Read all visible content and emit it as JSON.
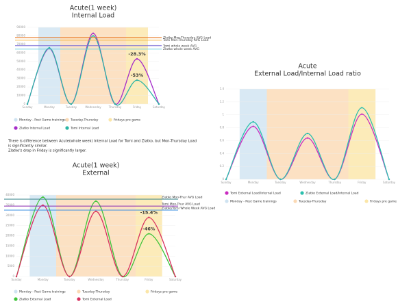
{
  "chart_data": [
    {
      "type": "line",
      "title": [
        "Acute(1 week)",
        "Internal Load"
      ],
      "categories": [
        "Sunday",
        "Monday",
        "Tuesday",
        "Wednesday",
        "Thursday",
        "Friday",
        "Saturday"
      ],
      "ylim": [
        0,
        90000
      ],
      "yticks": [
        0,
        10000,
        20000,
        30000,
        40000,
        50000,
        60000,
        70000,
        80000,
        90000
      ],
      "bands": [
        {
          "name": "Monday - Post Game trainings",
          "color": "#cfe3f1",
          "categories": [
            "Monday"
          ]
        },
        {
          "name": "Tuesday-Thursday",
          "color": "#fbd9b4",
          "categories": [
            "Tuesday",
            "Wednesday",
            "Thursday"
          ]
        },
        {
          "name": "Fridays pre game",
          "color": "#fbe6a8",
          "categories": [
            "Friday"
          ]
        }
      ],
      "series": [
        {
          "name": "Zlatko Internal Load",
          "color": "#a52bc9",
          "values": [
            0,
            65000,
            0,
            83000,
            0,
            53000,
            0
          ]
        },
        {
          "name": "Tomi Internal Load",
          "color": "#2bb5a5",
          "values": [
            0,
            66000,
            0,
            80000,
            0,
            28000,
            0
          ]
        }
      ],
      "reference_lines": [
        {
          "name": "Zlatko Mon-Thursday AVG Load",
          "color": "#e8731a",
          "value": 78000
        },
        {
          "name": "Tomi Mon-Thursday AVG Load",
          "color": "#f2b23a",
          "value": 75000
        },
        {
          "name": "Tomi whole week AVG",
          "color": "#7b6fd6",
          "value": 68500
        },
        {
          "name": "Zlatko whole week AVG",
          "color": "#6fd1e0",
          "value": 64500
        }
      ],
      "annotations": [
        {
          "text": "-28.3%",
          "series": "Zlatko Internal Load"
        },
        {
          "text": "-53%",
          "series": "Tomi Internal Load"
        }
      ]
    },
    {
      "type": "line",
      "title": [
        "Acute(1 week)",
        "External"
      ],
      "categories": [
        "Sunday",
        "Monday",
        "Tuesday",
        "Wednesday",
        "Thursday",
        "Friday",
        "Saturday"
      ],
      "ylim": [
        0,
        40000
      ],
      "yticks": [
        0,
        5000,
        10000,
        15000,
        20000,
        25000,
        30000,
        35000,
        40000
      ],
      "bands": [
        {
          "name": "Monday - Post Game trainings",
          "color": "#cfe3f1",
          "categories": [
            "Monday"
          ]
        },
        {
          "name": "Tuesday-Thursday",
          "color": "#fbd9b4",
          "categories": [
            "Tuesday",
            "Wednesday",
            "Thursday"
          ]
        },
        {
          "name": "Fridays pre game",
          "color": "#fbe6a8",
          "categories": [
            "Friday"
          ]
        }
      ],
      "series": [
        {
          "name": "Zlatko External Load",
          "color": "#3ec43a",
          "values": [
            0,
            39000,
            0,
            37000,
            0,
            21000,
            0
          ]
        },
        {
          "name": "Tomi External Load",
          "color": "#d8305e",
          "values": [
            0,
            35000,
            0,
            32000,
            0,
            29000,
            0
          ]
        }
      ],
      "reference_lines": [
        {
          "name": "Zlatko Mon-Thur AVG Load",
          "color": "#2f7f86",
          "value": 38000
        },
        {
          "name": "Tomi Mon-Thur AVG Load",
          "color": "#8b2bb0",
          "value": 34600
        },
        {
          "name": "Zlatko/Tomi Whole Week AVG Load",
          "color": "#3b8fe0",
          "value": 32600
        }
      ],
      "annotations": [
        {
          "text": "-15.4%",
          "series": "Tomi External Load"
        },
        {
          "text": "-46%",
          "series": "Zlatko External Load"
        }
      ]
    },
    {
      "type": "line",
      "title": [
        "Acute",
        "External Load/Internal Load ratio"
      ],
      "categories": [
        "Sunday",
        "Monday",
        "Tuesday",
        "Wednesday",
        "Thursday",
        "Friday",
        "Saturday"
      ],
      "ylim": [
        0,
        1.4
      ],
      "yticks": [
        0,
        0.2,
        0.4,
        0.6,
        0.8,
        1,
        1.2,
        1.4
      ],
      "bands": [
        {
          "name": "Monday - Post Game trainings",
          "color": "#cfe3f1",
          "categories": [
            "Monday"
          ]
        },
        {
          "name": "Tuesday-Thursday",
          "color": "#fbd9b4",
          "categories": [
            "Tuesday",
            "Wednesday",
            "Thursday"
          ]
        },
        {
          "name": "Fridays pre game",
          "color": "#fbe6a8",
          "categories": [
            "Friday"
          ]
        }
      ],
      "series": [
        {
          "name": "Tomi External Load/Internal Load",
          "color": "#c92cc0",
          "values": [
            0,
            0.82,
            0,
            0.64,
            0,
            1.01,
            0
          ]
        },
        {
          "name": "Zlatko External Load/Internal Load",
          "color": "#2bbfae",
          "values": [
            0,
            0.89,
            0,
            0.71,
            0,
            1.11,
            0
          ]
        }
      ],
      "reference_lines": [],
      "annotations": []
    }
  ],
  "note": [
    "There is difference between Acute(whole week) Internal Load for Tomi and Zlatko, but Mon-Thursday Load",
    "is significantly similar.",
    "Zlatko's drop in Friday is significantly larger."
  ]
}
